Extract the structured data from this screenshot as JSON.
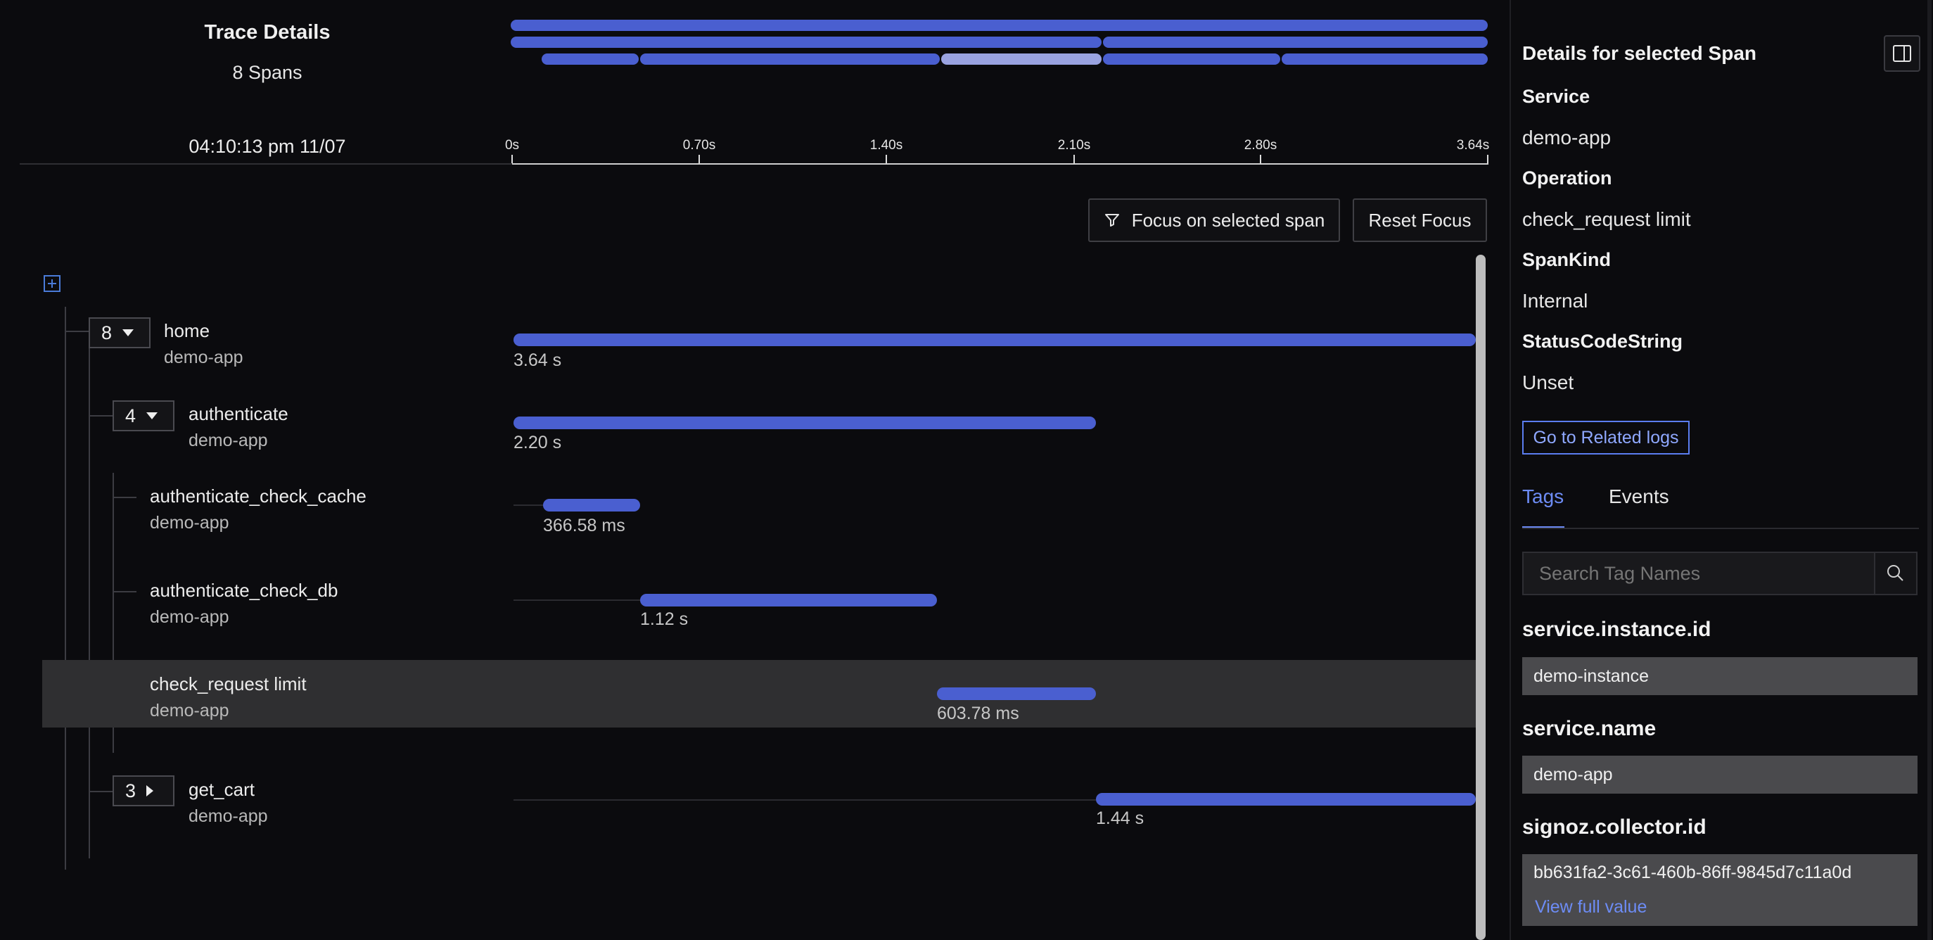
{
  "header": {
    "title": "Trace Details",
    "span_count": "8 Spans",
    "timestamp": "04:10:13 pm 11/07"
  },
  "timeline": {
    "ticks": [
      "0s",
      "0.70s",
      "1.40s",
      "2.10s",
      "2.80s",
      "3.64s"
    ]
  },
  "toolbar": {
    "focus_label": "Focus on selected span",
    "reset_label": "Reset Focus"
  },
  "spans": [
    {
      "name": "home",
      "service": "demo-app",
      "duration": "3.64 s",
      "count": "8"
    },
    {
      "name": "authenticate",
      "service": "demo-app",
      "duration": "2.20 s",
      "count": "4"
    },
    {
      "name": "authenticate_check_cache",
      "service": "demo-app",
      "duration": "366.58 ms"
    },
    {
      "name": "authenticate_check_db",
      "service": "demo-app",
      "duration": "1.12 s"
    },
    {
      "name": "check_request limit",
      "service": "demo-app",
      "duration": "603.78 ms"
    },
    {
      "name": "get_cart",
      "service": "demo-app",
      "duration": "1.44 s",
      "count": "3"
    }
  ],
  "details": {
    "title": "Details for selected Span",
    "service_label": "Service",
    "service_value": "demo-app",
    "operation_label": "Operation",
    "operation_value": "check_request limit",
    "spankind_label": "SpanKind",
    "spankind_value": "Internal",
    "status_label": "StatusCodeString",
    "status_value": "Unset",
    "related_logs": "Go to Related logs",
    "tabs": [
      "Tags",
      "Events"
    ],
    "search_placeholder": "Search Tag Names",
    "tags": [
      {
        "key": "service.instance.id",
        "value": "demo-instance"
      },
      {
        "key": "service.name",
        "value": "demo-app"
      },
      {
        "key": "signoz.collector.id",
        "value": "bb631fa2-3c61-460b-86ff-9845d7c11a0d",
        "link": "View full value"
      }
    ]
  },
  "colors": {
    "bar": "#4a5fd0",
    "selected_bar": "#9aa3e0",
    "accent": "#5b7df0"
  }
}
